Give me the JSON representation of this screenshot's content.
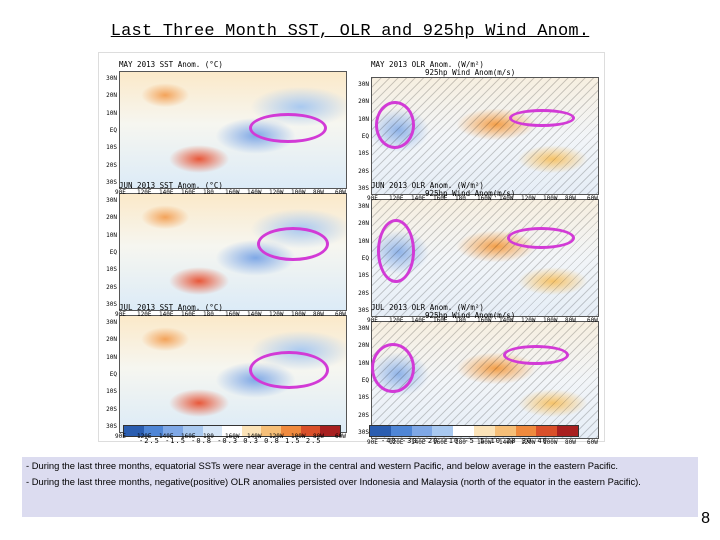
{
  "title": "Last Three Month SST, OLR and 925hp Wind Anom.",
  "rows": [
    {
      "sst_label": "MAY 2013 SST Anom. (°C)",
      "olr_label": "MAY 2013 OLR Anom. (W/m²)",
      "wind_label": "925hp Wind Anom(m/s)"
    },
    {
      "sst_label": "JUN 2013 SST Anom. (°C)",
      "olr_label": "JUN 2013 OLR Anom. (W/m²)",
      "wind_label": "925hp Wind Anom(m/s)"
    },
    {
      "sst_label": "JUL 2013 SST Anom. (°C)",
      "olr_label": "JUL 2013 OLR Anom. (W/m²)",
      "wind_label": "925hp Wind Anom(m/s)"
    }
  ],
  "x_ticks": [
    "90E",
    "120E",
    "140E",
    "160E",
    "180",
    "160W",
    "140W",
    "120W",
    "100W",
    "80W",
    "60W"
  ],
  "y_ticks": [
    "30N",
    "20N",
    "10N",
    "EQ",
    "10S",
    "20S",
    "30S"
  ],
  "sst_colorbar": {
    "ticks": "-2.5 -1.5 -0.8 -0.3 0.3 0.8 1.5 2.5",
    "colors": [
      "#2a5db0",
      "#4f86d6",
      "#7fa8e6",
      "#a9c9f0",
      "#d6e6f7",
      "#ffffff",
      "#fbe3b8",
      "#f6bf78",
      "#ef8a3e",
      "#d9502a",
      "#a82020"
    ]
  },
  "olr_colorbar": {
    "ticks": "-40 -30 -20 -10 -5 5 10 20 30 40",
    "colors": [
      "#2a5db0",
      "#4f86d6",
      "#7fa8e6",
      "#a9c9f0",
      "#ffffff",
      "#fbe3b8",
      "#f6bf78",
      "#ef8a3e",
      "#d9502a",
      "#a82020"
    ]
  },
  "ellipse_color": "#d23ad6",
  "notes": [
    "- During the last three months, equatorial SSTs were near average in the central and western Pacific, and below average in the eastern Pacific.",
    "- During the last three months, negative(positive) OLR anomalies persisted over Indonesia and Malaysia (north of the equator in the eastern Pacific)."
  ],
  "page_number": "8"
}
